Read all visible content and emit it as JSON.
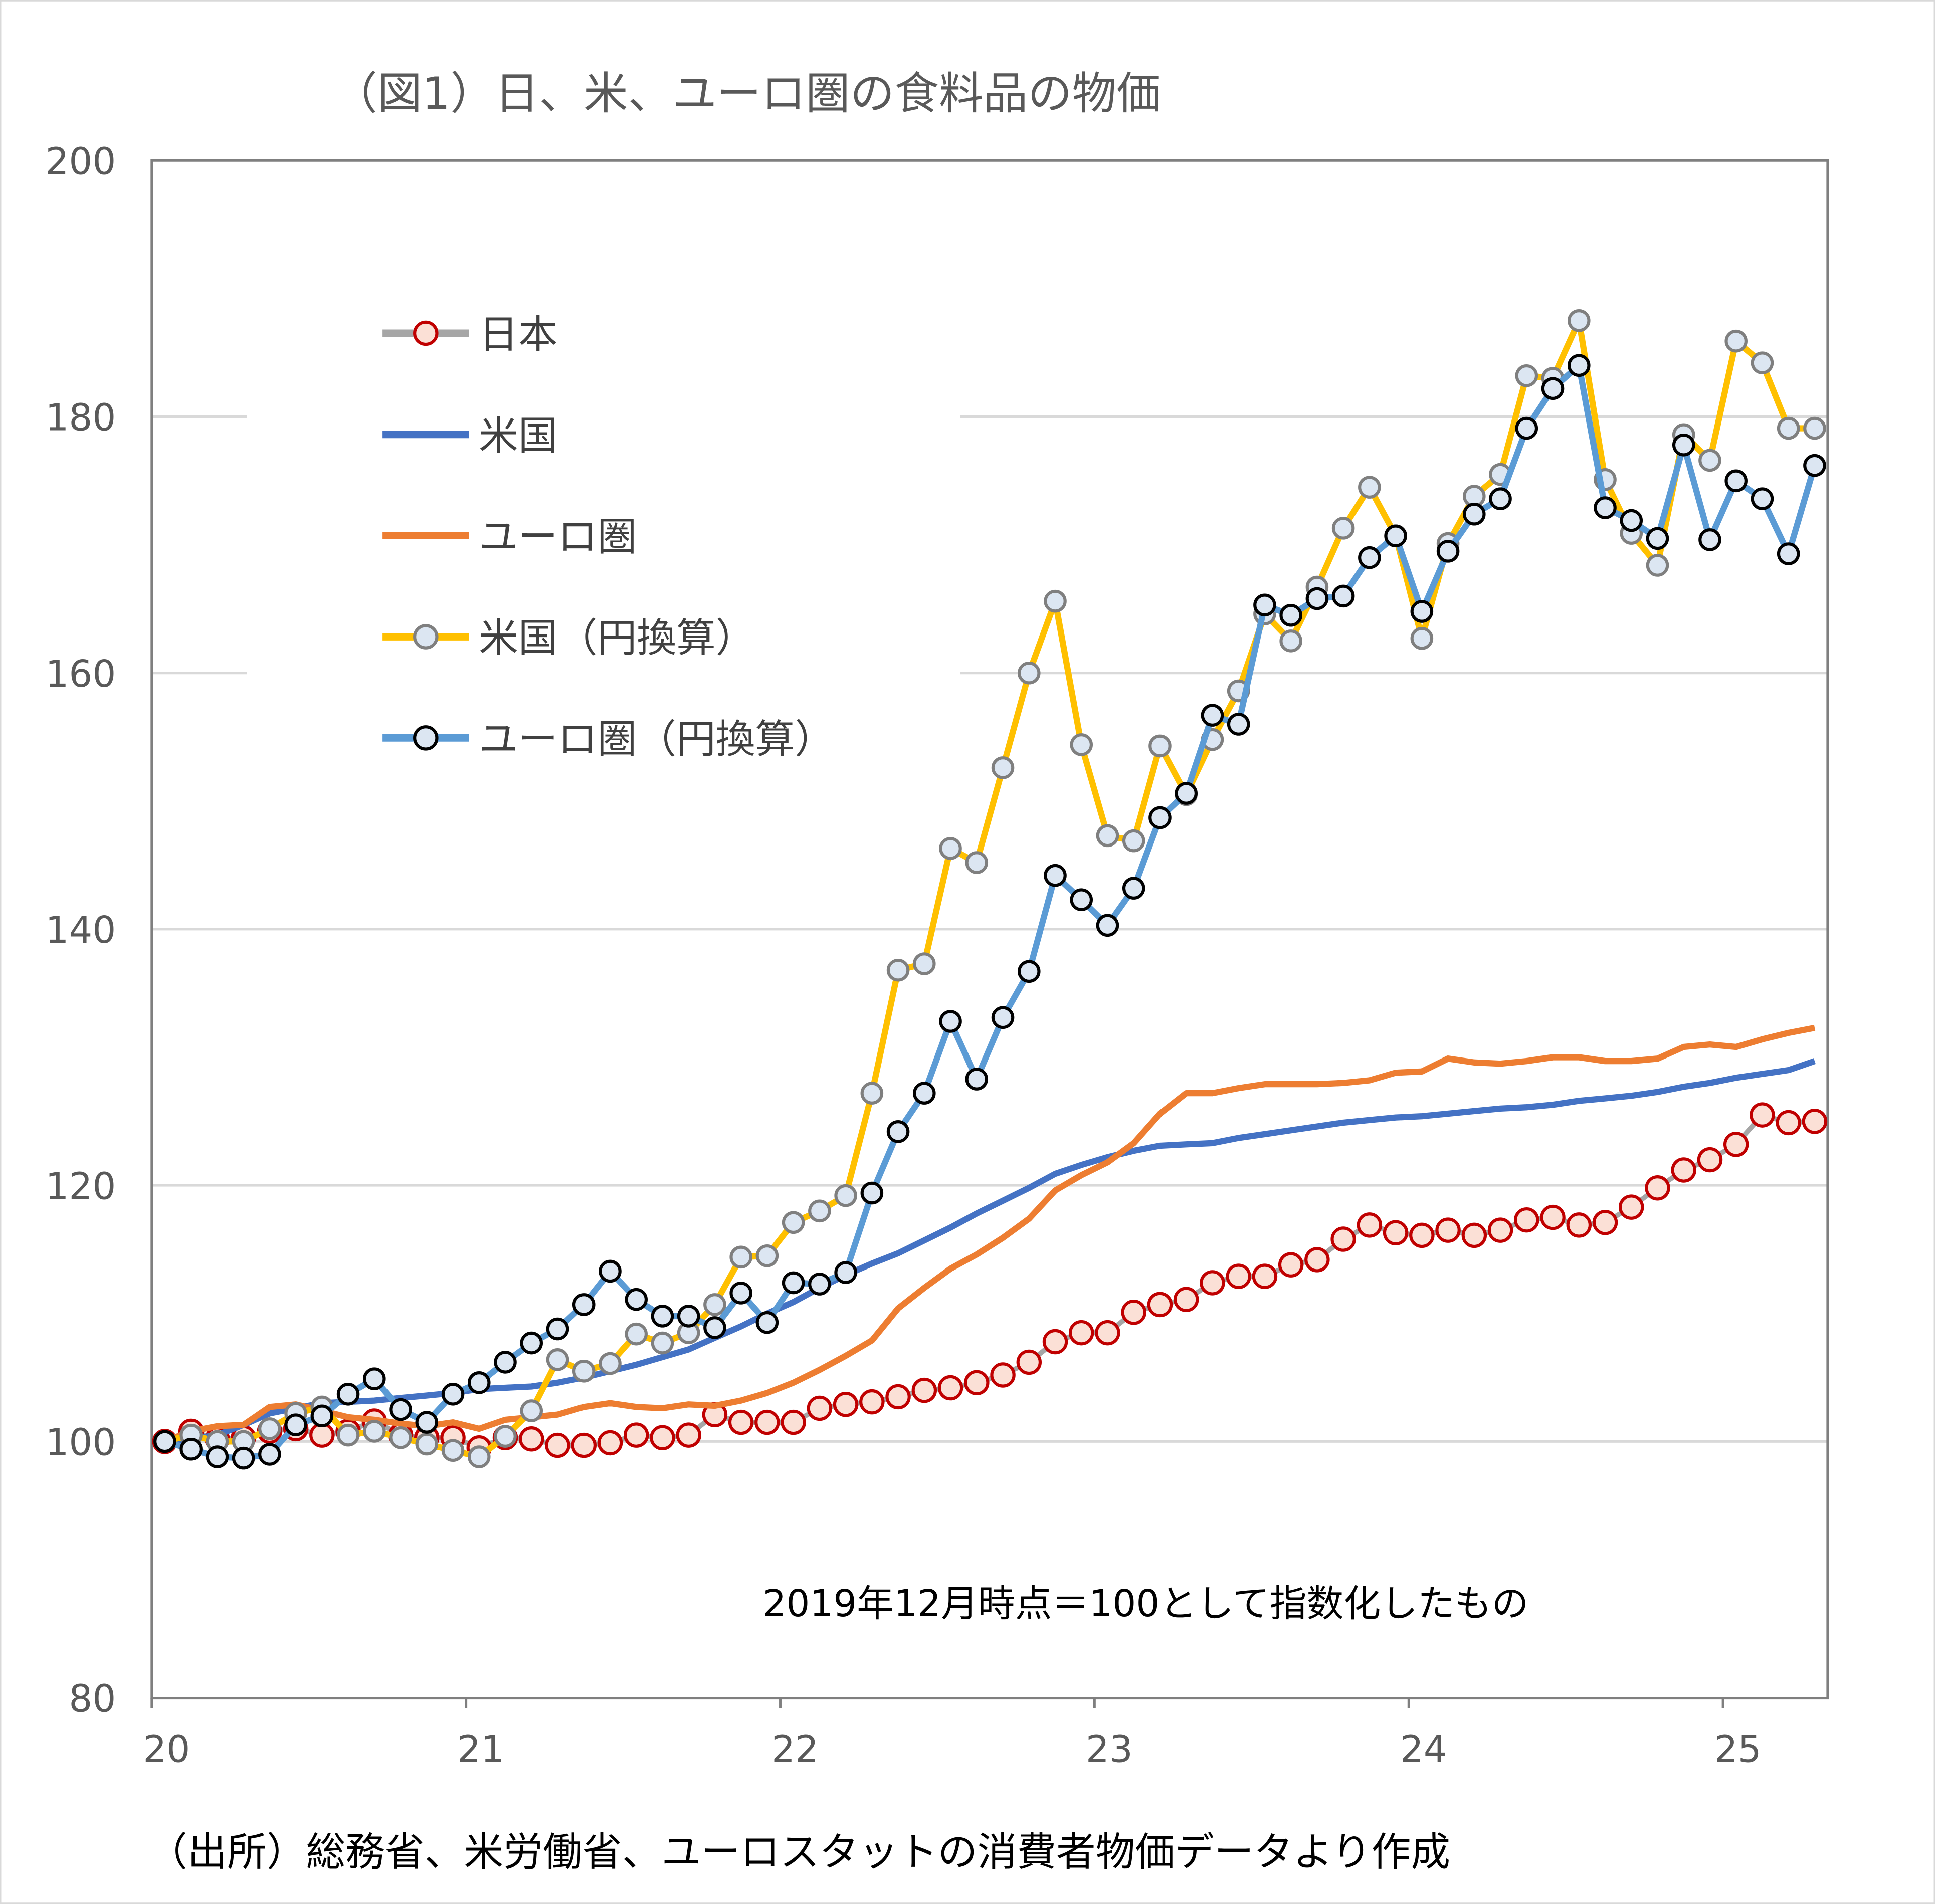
{
  "chart_data": {
    "type": "line",
    "title": "（図1）日、米、ユーロ圏の食料品の物価",
    "note": "2019年12月時点＝100として指数化したもの",
    "source": "（出所）総務省、米労働省、ユーロスタットの消費者物価データより作成",
    "xlabel": "",
    "ylabel": "",
    "x_tick_labels": [
      "20",
      "21",
      "22",
      "23",
      "24",
      "25"
    ],
    "y_tick_labels": [
      "80",
      "100",
      "120",
      "140",
      "160",
      "180",
      "200"
    ],
    "ylim": [
      80,
      200
    ],
    "grid": "horizontal",
    "legend_position": "top-left",
    "x": [
      "2019-12",
      "2020-01",
      "2020-02",
      "2020-03",
      "2020-04",
      "2020-05",
      "2020-06",
      "2020-07",
      "2020-08",
      "2020-09",
      "2020-10",
      "2020-11",
      "2020-12",
      "2021-01",
      "2021-02",
      "2021-03",
      "2021-04",
      "2021-05",
      "2021-06",
      "2021-07",
      "2021-08",
      "2021-09",
      "2021-10",
      "2021-11",
      "2021-12",
      "2022-01",
      "2022-02",
      "2022-03",
      "2022-04",
      "2022-05",
      "2022-06",
      "2022-07",
      "2022-08",
      "2022-09",
      "2022-10",
      "2022-11",
      "2022-12",
      "2023-01",
      "2023-02",
      "2023-03",
      "2023-04",
      "2023-05",
      "2023-06",
      "2023-07",
      "2023-08",
      "2023-09",
      "2023-10",
      "2023-11",
      "2023-12",
      "2024-01",
      "2024-02",
      "2024-03",
      "2024-04",
      "2024-05",
      "2024-06",
      "2024-07",
      "2024-08",
      "2024-09",
      "2024-10",
      "2024-11",
      "2024-12",
      "2025-01",
      "2025-02",
      "2025-03"
    ],
    "series": [
      {
        "name": "日本",
        "color": "#a6a6a6",
        "marker_fill": "#fbe0d6",
        "marker_stroke": "#c00000",
        "values": [
          100,
          100.8,
          100.2,
          100.3,
          100.8,
          101,
          100.5,
          100.8,
          101.6,
          100.5,
          100.3,
          100.3,
          99.5,
          100.3,
          100.2,
          99.7,
          99.7,
          99.9,
          100.5,
          100.3,
          100.5,
          102.1,
          101.5,
          101.5,
          101.5,
          102.6,
          102.9,
          103.1,
          103.5,
          104,
          104.2,
          104.6,
          105.2,
          106.2,
          107.8,
          108.5,
          108.5,
          110.1,
          110.7,
          111.1,
          112.4,
          112.9,
          112.9,
          113.8,
          114.2,
          115.8,
          116.9,
          116.3,
          116.1,
          116.5,
          116.1,
          116.5,
          117.3,
          117.5,
          116.9,
          117.1,
          118.3,
          119.8,
          121.2,
          122,
          123.2,
          125.5,
          124.9,
          125
        ]
      },
      {
        "name": "米国",
        "color": "#4472c4",
        "values": [
          100,
          100.2,
          100.5,
          101.3,
          102.2,
          102.6,
          103,
          103.1,
          103.2,
          103.4,
          103.6,
          103.8,
          104.1,
          104.2,
          104.3,
          104.6,
          105,
          105.5,
          106,
          106.6,
          107.2,
          108.1,
          109,
          110,
          110.9,
          112,
          113,
          113.9,
          114.7,
          115.7,
          116.7,
          117.8,
          118.8,
          119.8,
          120.9,
          121.6,
          122.2,
          122.7,
          123.1,
          123.2,
          123.3,
          123.7,
          124,
          124.3,
          124.6,
          124.9,
          125.1,
          125.3,
          125.4,
          125.6,
          125.8,
          126,
          126.1,
          126.3,
          126.6,
          126.8,
          127,
          127.3,
          127.7,
          128,
          128.4,
          128.7,
          129,
          129.7
        ]
      },
      {
        "name": "ユーロ圏",
        "color": "#ed7d31",
        "values": [
          100,
          100.8,
          101.2,
          101.3,
          102.7,
          102.9,
          102.4,
          101.9,
          101.7,
          101.4,
          101.2,
          101.5,
          101,
          101.7,
          101.9,
          102.1,
          102.7,
          103,
          102.7,
          102.6,
          102.9,
          102.8,
          103.2,
          103.8,
          104.6,
          105.6,
          106.7,
          107.9,
          110.4,
          112,
          113.5,
          114.6,
          115.9,
          117.4,
          119.6,
          120.8,
          121.8,
          123.3,
          125.6,
          127.2,
          127.2,
          127.6,
          127.9,
          127.9,
          127.9,
          128,
          128.2,
          128.8,
          128.9,
          129.9,
          129.6,
          129.5,
          129.7,
          130,
          130,
          129.7,
          129.7,
          129.9,
          130.8,
          131,
          130.8,
          131.4,
          131.9,
          132.3
        ]
      },
      {
        "name": "米国(円換算)",
        "color": "#ffc000",
        "marker_fill": "#dce6f2",
        "marker_stroke": "#7f7f7f",
        "values": [
          100,
          100.5,
          100,
          100,
          101,
          102.2,
          102.7,
          100.5,
          100.8,
          100.3,
          99.8,
          99.3,
          98.8,
          100.4,
          102.4,
          106.4,
          105.5,
          106.1,
          108.4,
          107.7,
          108.5,
          110.7,
          114.4,
          114.5,
          117.1,
          118,
          119.2,
          127.2,
          136.8,
          137.3,
          146.3,
          145.2,
          152.6,
          160,
          165.6,
          154.4,
          147.3,
          146.9,
          154.3,
          150.5,
          154.8,
          158.6,
          164.6,
          162.5,
          166.7,
          171.3,
          174.5,
          170.7,
          162.7,
          170.1,
          173.8,
          175.5,
          183.2,
          183,
          187.5,
          175.1,
          170.9,
          168.4,
          178.6,
          176.6,
          185.9,
          184.2,
          179.1,
          179.1
        ]
      },
      {
        "name": "ユーロ圏(円換算)",
        "color": "#5b9bd5",
        "marker_fill": "#dce6f2",
        "marker_stroke": "#000000",
        "values": [
          100,
          99.4,
          98.8,
          98.7,
          99,
          101.3,
          102,
          103.7,
          104.9,
          102.5,
          101.5,
          103.7,
          104.6,
          106.2,
          107.7,
          108.8,
          110.7,
          113.3,
          111.1,
          109.8,
          109.8,
          108.9,
          111.6,
          109.3,
          112.4,
          112.3,
          113.2,
          119.4,
          124.2,
          127.2,
          132.8,
          128.3,
          133.1,
          136.7,
          144.2,
          142.3,
          140.3,
          143.2,
          148.7,
          150.6,
          156.7,
          156,
          165.3,
          164.5,
          165.8,
          166,
          169,
          170.7,
          164.8,
          169.5,
          172.4,
          173.6,
          179.1,
          182.2,
          184,
          172.9,
          171.9,
          170.5,
          177.8,
          170.4,
          175,
          173.6,
          169.3,
          176.2
        ]
      }
    ],
    "legend": [
      "日本",
      "米国",
      "ユーロ圏",
      "米国（円換算）",
      "ユーロ圏（円換算）"
    ]
  }
}
